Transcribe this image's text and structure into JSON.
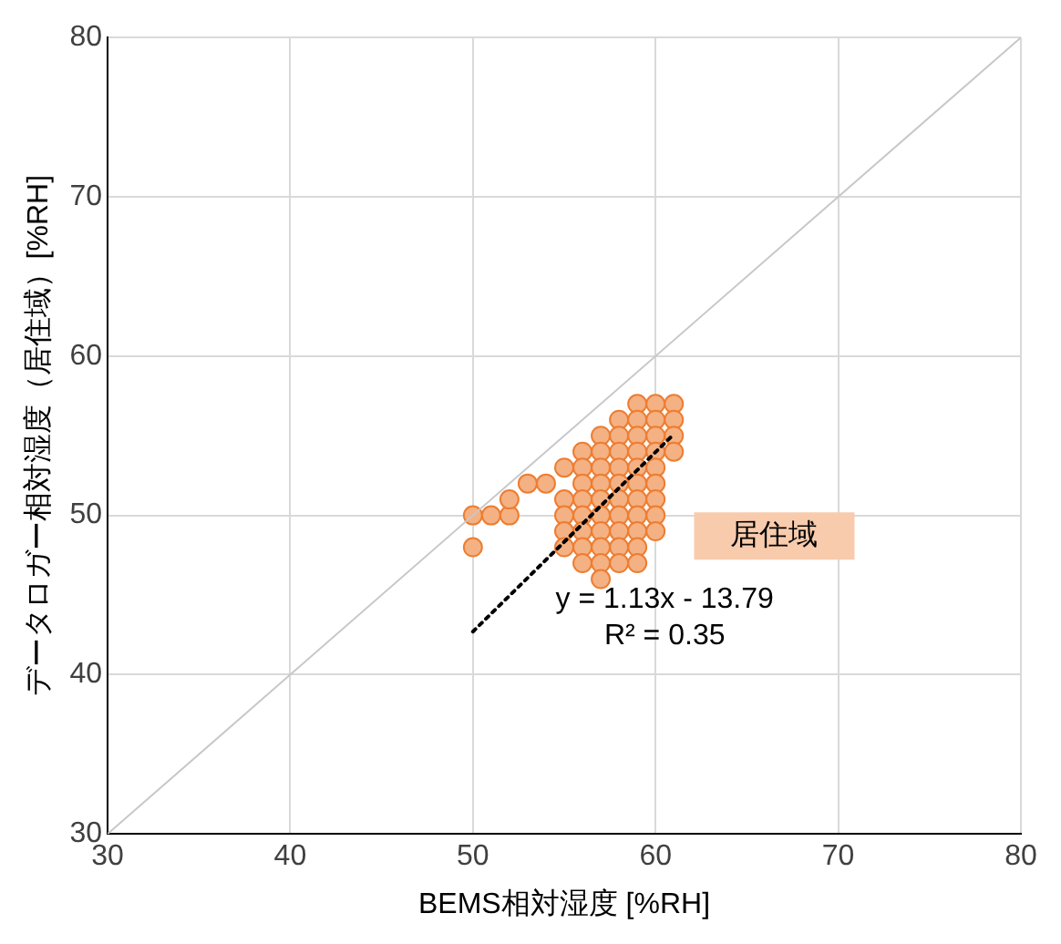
{
  "chart_data": {
    "type": "scatter",
    "xlabel": "BEMS相対湿度 [%RH]",
    "ylabel": "データロガー相対湿度（居住域）[%RH]",
    "xlim": [
      30,
      80
    ],
    "ylim": [
      30,
      80
    ],
    "xticks": [
      30,
      40,
      50,
      60,
      70,
      80
    ],
    "yticks": [
      30,
      40,
      50,
      60,
      70,
      80
    ],
    "grid": true,
    "legend": false,
    "annotations": [
      "居住域",
      "y = 1.13x - 13.79",
      "R² = 0.35"
    ],
    "series": [
      {
        "type": "line",
        "color": "#c8c8c8",
        "line_style": "solid",
        "marker": "none",
        "x": [
          30,
          80
        ],
        "values": [
          30,
          80
        ]
      },
      {
        "color": "#f4b183",
        "marker": "circle",
        "x": [
          50,
          50,
          51,
          52,
          52,
          53,
          54,
          55,
          55,
          55,
          55,
          55,
          56,
          56,
          56,
          56,
          56,
          56,
          56,
          56,
          57,
          57,
          57,
          57,
          57,
          57,
          57,
          57,
          57,
          57,
          58,
          58,
          58,
          58,
          58,
          58,
          58,
          58,
          58,
          58,
          59,
          59,
          59,
          59,
          59,
          59,
          59,
          59,
          59,
          59,
          59,
          60,
          60,
          60,
          60,
          60,
          60,
          60,
          60,
          60,
          61,
          61,
          61,
          61
        ],
        "values": [
          50,
          48,
          50,
          50,
          51,
          52,
          52,
          53,
          51,
          50,
          49,
          48,
          54,
          53,
          52,
          51,
          50,
          49,
          48,
          47,
          55,
          54,
          53,
          52,
          51,
          50,
          49,
          48,
          47,
          46,
          56,
          55,
          54,
          53,
          52,
          51,
          50,
          49,
          48,
          47,
          57,
          56,
          55,
          54,
          53,
          52,
          51,
          50,
          49,
          48,
          47,
          57,
          56,
          55,
          54,
          53,
          52,
          51,
          50,
          49,
          57,
          56,
          55,
          54
        ]
      },
      {
        "type": "line",
        "color": "#000000",
        "line_style": "dotted",
        "marker": "none",
        "x": [
          50,
          61
        ],
        "values": [
          42.7,
          55.1
        ]
      }
    ]
  }
}
